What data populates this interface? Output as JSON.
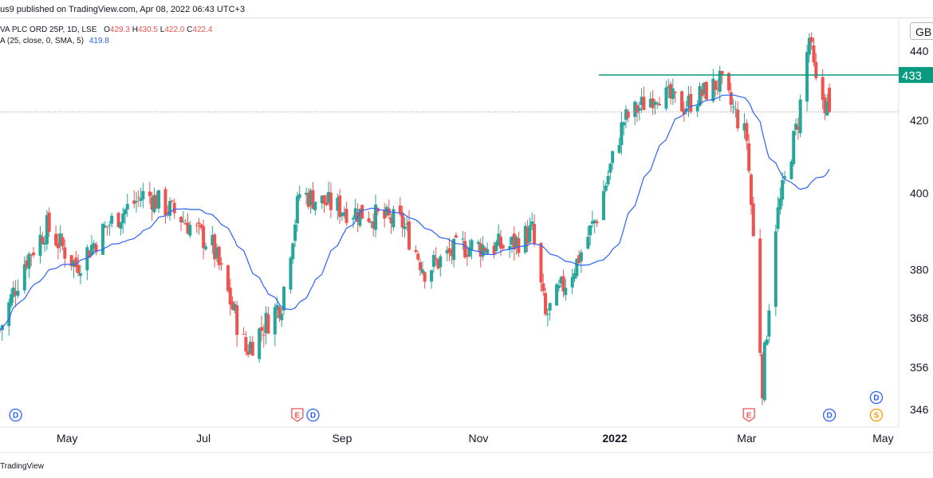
{
  "header": {
    "published": "us9 published on TradingView.com, Apr 08, 2022 06:43 UTC+3",
    "symbol": "VA PLC ORD 25P, 1D, LSE",
    "ohlc": [
      {
        "k": "O",
        "v": "429.3"
      },
      {
        "k": "H",
        "v": "430.5"
      },
      {
        "k": "L",
        "v": "422.0"
      },
      {
        "k": "C",
        "v": "422.4"
      }
    ],
    "ma_label": "A (25, close, 0, SMA, 5)",
    "ma_value": "419.8"
  },
  "currency_label": "GB",
  "footer": "TradingView",
  "colors": {
    "up": "#26a69a",
    "down": "#ef5350",
    "ma": "#2962ff",
    "hline": "#089981",
    "price_label_bg": "#089981"
  },
  "chart_data": {
    "type": "candlestick",
    "scale": "log",
    "title": "",
    "ylim": [
      342,
      450
    ],
    "y_ticks": [
      "440",
      "420",
      "400",
      "380",
      "368",
      "356",
      "346"
    ],
    "x_ticks": [
      {
        "label": "May",
        "x": "2021-05-01"
      },
      {
        "label": "Jul",
        "x": "2021-07-01"
      },
      {
        "label": "Sep",
        "x": "2021-09-01"
      },
      {
        "label": "Nov",
        "x": "2021-11-01"
      },
      {
        "label": "2022",
        "x": "2022-01-01",
        "bold": true
      },
      {
        "label": "Mar",
        "x": "2022-03-01"
      },
      {
        "label": "May",
        "x": "2022-05-01"
      }
    ],
    "xlim": [
      "2021-04-01",
      "2022-05-08"
    ],
    "horizontal_line": {
      "value": 433,
      "label": "433",
      "from": "2022-01-01"
    },
    "last_close_dotted": 422.4,
    "events": [
      {
        "type": "D",
        "date": "2021-04-08"
      },
      {
        "type": "E",
        "date": "2021-08-12"
      },
      {
        "type": "D",
        "date": "2021-08-19"
      },
      {
        "type": "E",
        "date": "2022-03-02"
      },
      {
        "type": "D",
        "date": "2022-04-07"
      },
      {
        "type": "D",
        "date": "2022-04-28",
        "row": "upper"
      },
      {
        "type": "S",
        "date": "2022-04-28",
        "row": "lower"
      }
    ],
    "key_closes": [
      {
        "date": "2021-04-01",
        "close": 365
      },
      {
        "date": "2021-04-12",
        "close": 382
      },
      {
        "date": "2021-04-22",
        "close": 391
      },
      {
        "date": "2021-05-05",
        "close": 381
      },
      {
        "date": "2021-05-20",
        "close": 392
      },
      {
        "date": "2021-06-05",
        "close": 400
      },
      {
        "date": "2021-06-20",
        "close": 394
      },
      {
        "date": "2021-07-05",
        "close": 386
      },
      {
        "date": "2021-07-20",
        "close": 360
      },
      {
        "date": "2021-08-05",
        "close": 372
      },
      {
        "date": "2021-08-13",
        "close": 400
      },
      {
        "date": "2021-08-31",
        "close": 396
      },
      {
        "date": "2021-09-15",
        "close": 394
      },
      {
        "date": "2021-09-28",
        "close": 392
      },
      {
        "date": "2021-10-08",
        "close": 380
      },
      {
        "date": "2021-10-25",
        "close": 386
      },
      {
        "date": "2021-11-15",
        "close": 386
      },
      {
        "date": "2021-11-25",
        "close": 390
      },
      {
        "date": "2021-12-01",
        "close": 368
      },
      {
        "date": "2021-12-15",
        "close": 382
      },
      {
        "date": "2021-12-24",
        "close": 394
      },
      {
        "date": "2022-01-05",
        "close": 420
      },
      {
        "date": "2022-01-20",
        "close": 428
      },
      {
        "date": "2022-02-01",
        "close": 424
      },
      {
        "date": "2022-02-17",
        "close": 431
      },
      {
        "date": "2022-03-01",
        "close": 415
      },
      {
        "date": "2022-03-08",
        "close": 352
      },
      {
        "date": "2022-03-14",
        "close": 392
      },
      {
        "date": "2022-03-24",
        "close": 420
      },
      {
        "date": "2022-03-29",
        "close": 444
      },
      {
        "date": "2022-04-01",
        "close": 430
      },
      {
        "date": "2022-04-07",
        "close": 422.4
      }
    ]
  }
}
